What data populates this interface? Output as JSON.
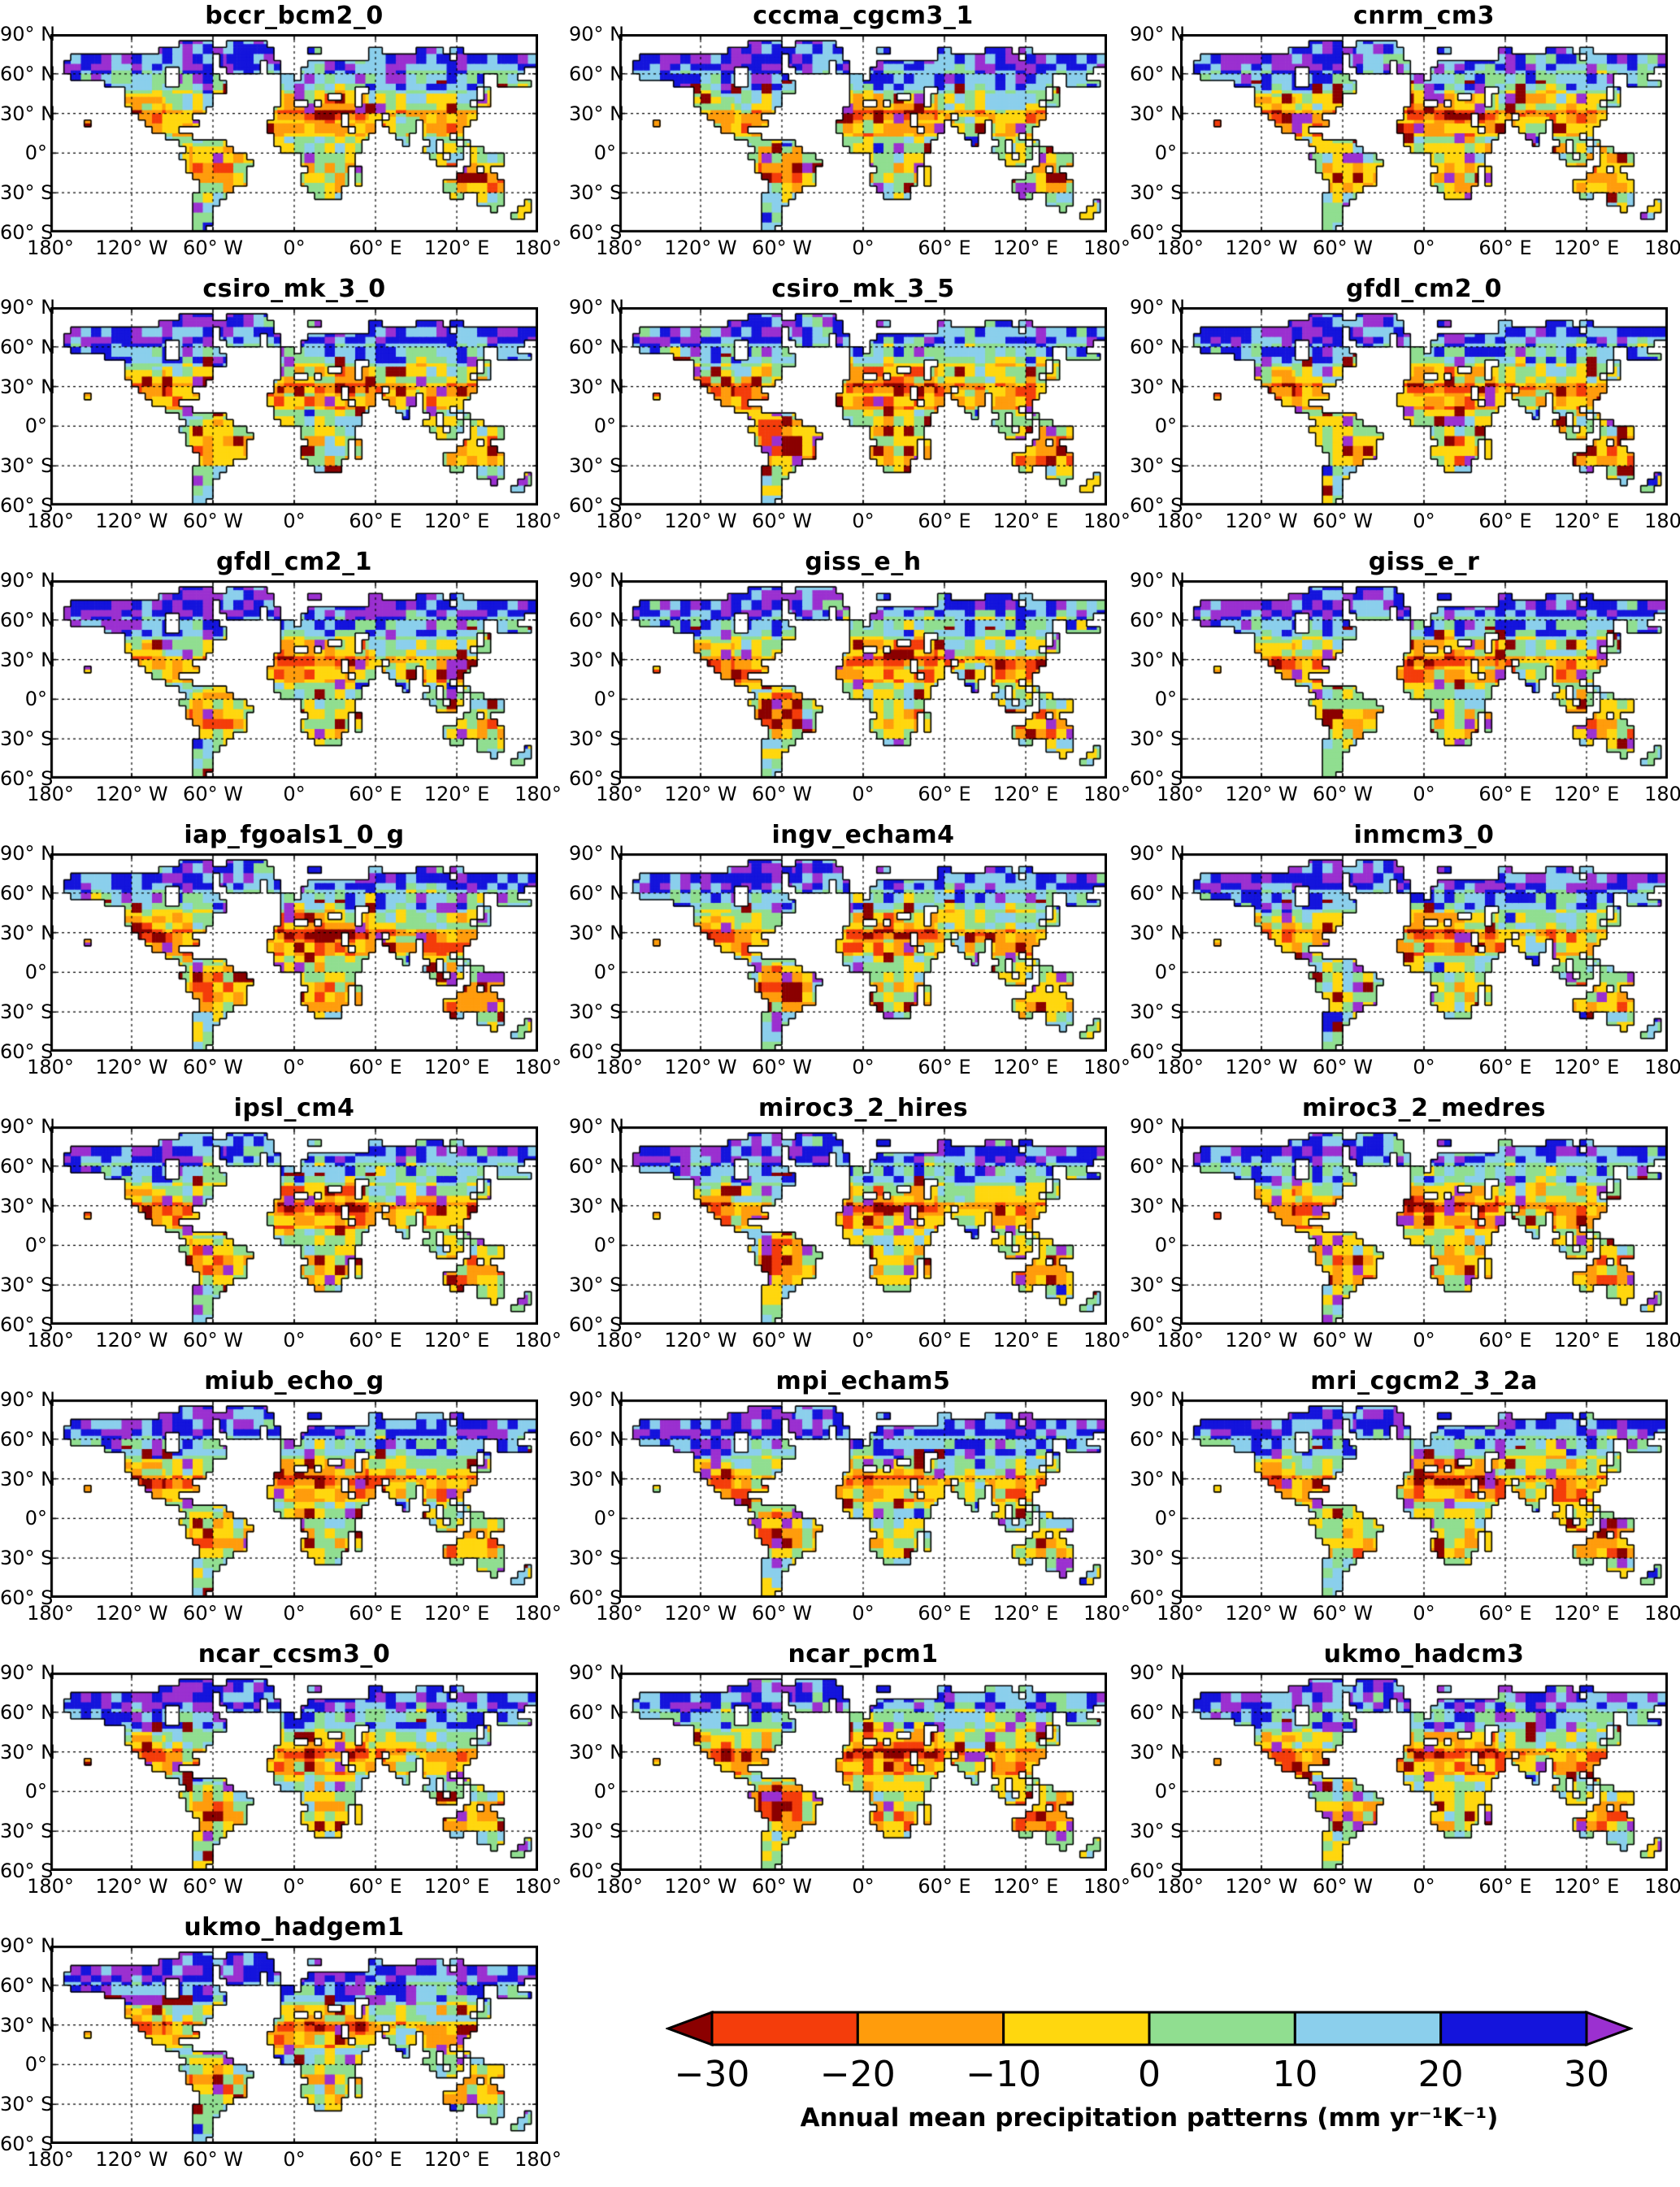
{
  "axes": {
    "x_ticks": [
      "180°",
      "120° W",
      "60° W",
      "0°",
      "60° E",
      "120° E",
      "180°"
    ],
    "y_ticks": [
      "90° N",
      "60° N",
      "30° N",
      "0°",
      "30° S",
      "60° S"
    ]
  },
  "colorbar": {
    "ticks": [
      "−30",
      "−20",
      "−10",
      "0",
      "10",
      "20",
      "30"
    ],
    "label": "Annual mean precipitation patterns (mm yr⁻¹K⁻¹)"
  },
  "chart_data": {
    "type": "heatmap",
    "layout": "small-multiples grid, 3 columns x 8 rows (22 global map panels), colorbar legend at bottom right",
    "variable": "Annual mean precipitation patterns",
    "units": "mm yr⁻¹ K⁻¹",
    "models": [
      "bccr_bcm2_0",
      "cccma_cgcm3_1",
      "cnrm_cm3",
      "csiro_mk_3_0",
      "csiro_mk_3_5",
      "gfdl_cm2_0",
      "gfdl_cm2_1",
      "giss_e_h",
      "giss_e_r",
      "iap_fgoals1_0_g",
      "ingv_echam4",
      "inmcm3_0",
      "ipsl_cm4",
      "miroc3_2_hires",
      "miroc3_2_medres",
      "miub_echo_g",
      "mpi_echam5",
      "mri_cgcm2_3_2a",
      "ncar_ccsm3_0",
      "ncar_pcm1",
      "ukmo_hadcm3",
      "ukmo_hadgem1"
    ],
    "projection": "equirectangular",
    "lon_range": [
      -180,
      180
    ],
    "lat_range": [
      -60,
      90
    ],
    "graticule_deg": 30,
    "graticule_style": "dashed black",
    "land_only": true,
    "ocean_color": "#FFFFFF",
    "coastline_color": "#000000",
    "colorbar": {
      "levels": [
        -30,
        -20,
        -10,
        0,
        10,
        20,
        30
      ],
      "band_colors": [
        "#F43D0B",
        "#FF9C0C",
        "#FFD70E",
        "#90DE90",
        "#8BCFEC",
        "#1414DC"
      ],
      "under_color": "#8B0000",
      "over_color": "#9B30D0",
      "under_label": "< −30",
      "over_label": "> 30"
    }
  }
}
